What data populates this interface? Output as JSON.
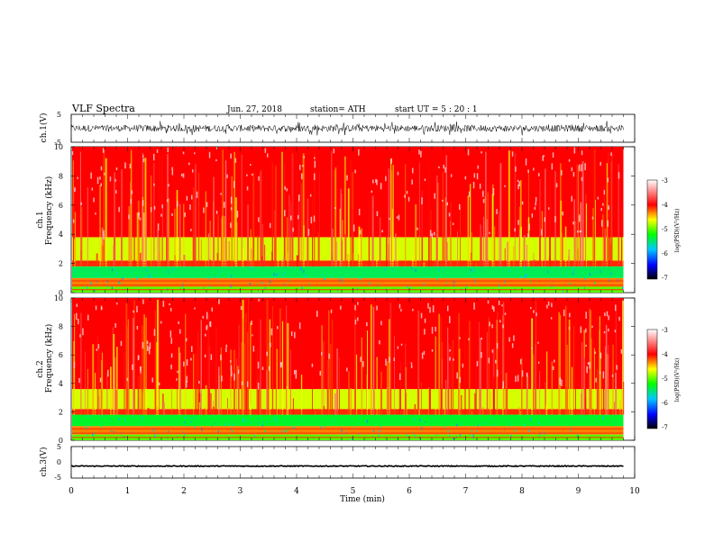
{
  "header": {
    "title": "VLF  Spectra",
    "date": "Jun. 27, 2018",
    "station": "station= ATH",
    "start": "start  UT  =    5  : 20 : 1"
  },
  "chart_data": [
    {
      "type": "line",
      "name": "ch1-waveform",
      "ylabel": "ch.1(V)",
      "ylim": [
        -5,
        5
      ],
      "yticks": [
        "5",
        "-5"
      ],
      "xlim": [
        0,
        10
      ],
      "data_extent_min": 9.8,
      "amplitude_V": 1.2
    },
    {
      "type": "heatmap",
      "name": "ch1-spectrogram",
      "ylabel_channel": "ch.1",
      "ylabel": "Frequency  (kHz)",
      "ylim": [
        0,
        10
      ],
      "yticks": [
        "0",
        "2",
        "4",
        "6",
        "8",
        "10"
      ],
      "xlim": [
        0,
        9.8
      ],
      "bands_kHz": [
        {
          "from": 0,
          "to": 0.4,
          "level": -5.0
        },
        {
          "from": 0.4,
          "to": 1.0,
          "level": -4.3
        },
        {
          "from": 1.0,
          "to": 1.8,
          "level": -5.4
        },
        {
          "from": 1.8,
          "to": 2.2,
          "level": -4.1
        },
        {
          "from": 2.2,
          "to": 3.8,
          "level": -4.7
        },
        {
          "from": 3.8,
          "to": 10,
          "level": -4.0
        }
      ],
      "colorbar": {
        "label": "log(PSD)(V²/Hz)",
        "range": [
          -7,
          -3
        ],
        "ticks": [
          "-3",
          "-4",
          "-5",
          "-6",
          "-7"
        ]
      }
    },
    {
      "type": "heatmap",
      "name": "ch2-spectrogram",
      "ylabel_channel": "ch.2",
      "ylabel": "Frequency  (kHz)",
      "ylim": [
        0,
        10
      ],
      "yticks": [
        "0",
        "2",
        "4",
        "6",
        "8",
        "10"
      ],
      "xlim": [
        0,
        9.8
      ],
      "bands_kHz": [
        {
          "from": 0,
          "to": 0.4,
          "level": -5.0
        },
        {
          "from": 0.4,
          "to": 1.0,
          "level": -4.3
        },
        {
          "from": 1.0,
          "to": 1.8,
          "level": -5.3
        },
        {
          "from": 1.8,
          "to": 2.2,
          "level": -4.1
        },
        {
          "from": 2.2,
          "to": 3.6,
          "level": -4.7
        },
        {
          "from": 3.6,
          "to": 10,
          "level": -4.0
        }
      ],
      "colorbar": {
        "label": "log(PSD)(V²/Hz)",
        "range": [
          -7,
          -3
        ],
        "ticks": [
          "-3",
          "-4",
          "-5",
          "-6",
          "-7"
        ]
      }
    },
    {
      "type": "line",
      "name": "ch3-waveform",
      "ylabel": "ch.3(V)",
      "ylim": [
        -5,
        5
      ],
      "yticks": [
        "5",
        "0",
        "-5"
      ],
      "xlim": [
        0,
        10
      ],
      "data_extent_min": 9.8,
      "level_V": -1.2,
      "amplitude_V": 0.15
    }
  ],
  "xaxis": {
    "label": "Time  (min)",
    "ticks": [
      "0",
      "1",
      "2",
      "3",
      "4",
      "5",
      "6",
      "7",
      "8",
      "9",
      "10"
    ]
  },
  "colors": {
    "colormap": [
      "#000000",
      "#0000ff",
      "#00c8ff",
      "#00ff00",
      "#ffff00",
      "#ff0000",
      "#ffffff"
    ]
  }
}
